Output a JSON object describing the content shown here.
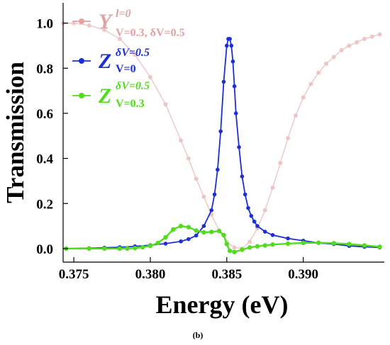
{
  "caption": "(b)",
  "chart_data": {
    "type": "line",
    "xlabel": "Energy (eV)",
    "ylabel": "Transmission",
    "xlim": [
      0.3743,
      0.3953
    ],
    "ylim": [
      -0.06,
      1.09
    ],
    "xticks": [
      0.375,
      0.38,
      0.385,
      0.39
    ],
    "xtick_labels": [
      "0.375",
      "0.380",
      "0.385",
      "0.390"
    ],
    "yticks": [
      0.0,
      0.2,
      0.4,
      0.6,
      0.8,
      1.0
    ],
    "ytick_labels": [
      "0.0",
      "0.2",
      "0.4",
      "0.6",
      "0.8",
      "1.0"
    ],
    "grid": false,
    "legend_position": "top-left",
    "legend": [
      {
        "main": "Y",
        "sup": "l=0",
        "sub": "V=0.3, δV=0.5",
        "color": "#e2a2a2"
      },
      {
        "main": "Z",
        "sup": "δV=0.5",
        "sub": "V=0",
        "color": "#1c2fd6"
      },
      {
        "main": "Z",
        "sup": "δV=0.5",
        "sub": "V=0.3",
        "color": "#52dc1e"
      }
    ],
    "series": [
      {
        "color": "#e8b4b4",
        "x": [
          0.3743,
          0.375,
          0.376,
          0.377,
          0.378,
          0.379,
          0.38,
          0.381,
          0.382,
          0.3825,
          0.383,
          0.3835,
          0.384,
          0.3845,
          0.385,
          0.3855,
          0.386,
          0.3865,
          0.387,
          0.3875,
          0.388,
          0.3885,
          0.389,
          0.3895,
          0.39,
          0.3905,
          0.391,
          0.3915,
          0.392,
          0.3925,
          0.393,
          0.3935,
          0.394,
          0.3945,
          0.395
        ],
        "y": [
          1.0,
          1.0,
          0.99,
          0.97,
          0.93,
          0.86,
          0.76,
          0.64,
          0.48,
          0.4,
          0.31,
          0.23,
          0.15,
          0.08,
          0.03,
          0.005,
          0.0,
          0.03,
          0.09,
          0.17,
          0.27,
          0.38,
          0.49,
          0.59,
          0.67,
          0.73,
          0.78,
          0.82,
          0.85,
          0.88,
          0.9,
          0.915,
          0.93,
          0.94,
          0.95
        ]
      },
      {
        "color": "#1c2fd6",
        "x": [
          0.3745,
          0.376,
          0.377,
          0.378,
          0.379,
          0.38,
          0.381,
          0.382,
          0.3825,
          0.383,
          0.3835,
          0.384,
          0.3842,
          0.3844,
          0.3846,
          0.3848,
          0.385,
          0.3851,
          0.3852,
          0.3853,
          0.3854,
          0.3855,
          0.3856,
          0.3858,
          0.386,
          0.3862,
          0.3864,
          0.3866,
          0.3868,
          0.387,
          0.3875,
          0.388,
          0.389,
          0.39,
          0.391,
          0.392,
          0.393,
          0.394,
          0.395
        ],
        "y": [
          0.0,
          0.002,
          0.004,
          0.006,
          0.01,
          0.015,
          0.022,
          0.032,
          0.042,
          0.058,
          0.1,
          0.17,
          0.24,
          0.35,
          0.52,
          0.74,
          0.9,
          0.93,
          0.93,
          0.9,
          0.83,
          0.72,
          0.6,
          0.45,
          0.32,
          0.24,
          0.18,
          0.145,
          0.12,
          0.1,
          0.075,
          0.06,
          0.045,
          0.035,
          0.025,
          0.02,
          0.012,
          0.008,
          0.005
        ]
      },
      {
        "color": "#52dc1e",
        "x": [
          0.3745,
          0.376,
          0.377,
          0.378,
          0.3785,
          0.379,
          0.3795,
          0.38,
          0.3805,
          0.381,
          0.3815,
          0.382,
          0.3825,
          0.383,
          0.3835,
          0.384,
          0.3845,
          0.3848,
          0.385,
          0.3852,
          0.3855,
          0.386,
          0.3865,
          0.387,
          0.3875,
          0.388,
          0.389,
          0.39,
          0.391,
          0.392,
          0.393,
          0.394,
          0.395
        ],
        "y": [
          0.0,
          0.0,
          0.0,
          0.0,
          0.0,
          0.002,
          0.006,
          0.012,
          0.025,
          0.05,
          0.085,
          0.1,
          0.095,
          0.08,
          0.072,
          0.074,
          0.078,
          0.06,
          0.02,
          -0.01,
          -0.015,
          -0.005,
          0.005,
          0.01,
          0.014,
          0.018,
          0.022,
          0.025,
          0.026,
          0.024,
          0.02,
          0.014,
          0.008
        ]
      }
    ]
  }
}
